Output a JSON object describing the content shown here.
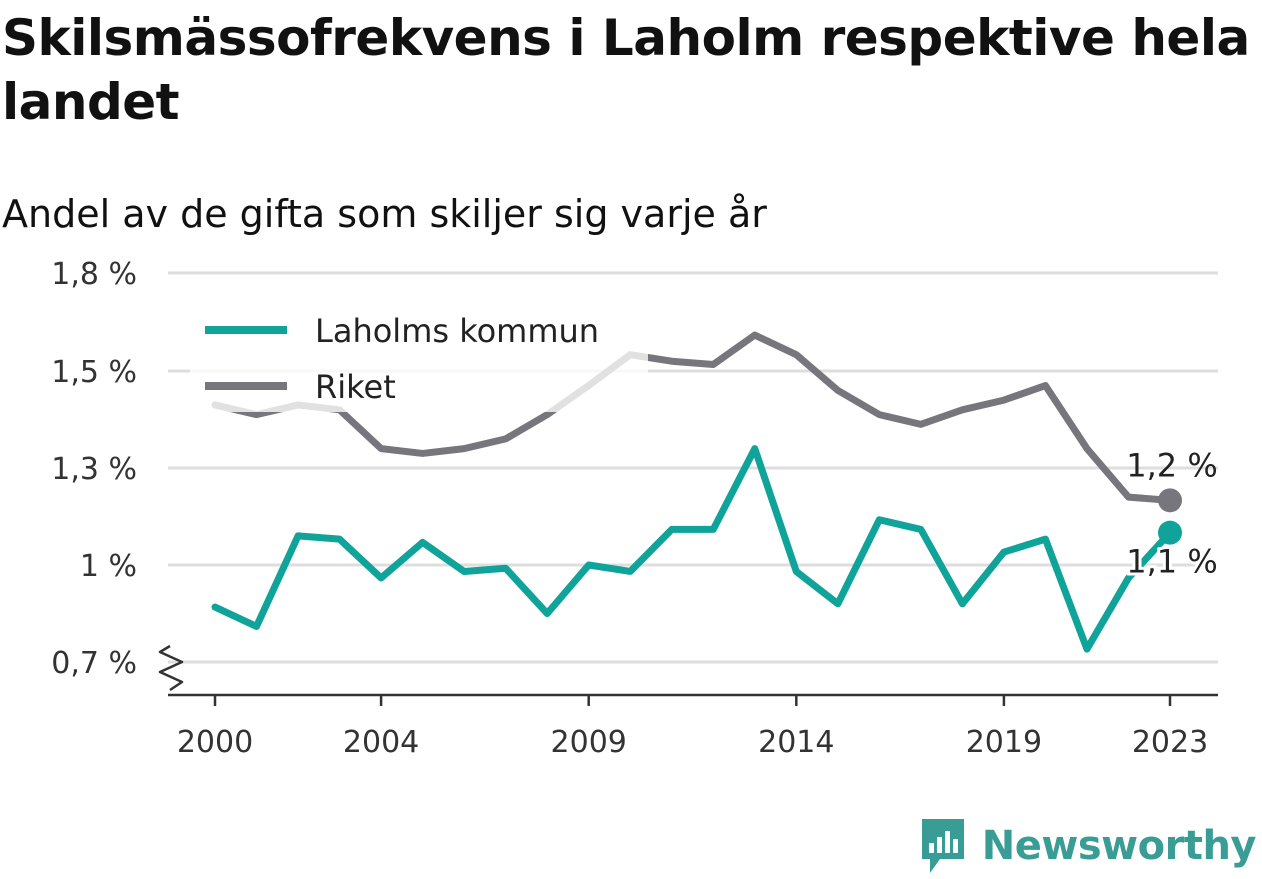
{
  "header": {
    "title": "Skilsmässofrekvens i Laholm respektive hela landet",
    "subtitle": "Andel av de gifta som skiljer sig varje år"
  },
  "brand": {
    "name": "Newsworthy",
    "icon": "newsworthy-logo-icon",
    "color": "#3a9d95"
  },
  "chart_data": {
    "type": "line",
    "title": "Skilsmässofrekvens i Laholm respektive hela landet",
    "subtitle": "Andel av de gifta som skiljer sig varje år",
    "x": [
      2000,
      2001,
      2002,
      2003,
      2004,
      2005,
      2006,
      2007,
      2008,
      2009,
      2010,
      2011,
      2012,
      2013,
      2014,
      2015,
      2016,
      2017,
      2018,
      2019,
      2020,
      2021,
      2022,
      2023
    ],
    "x_ticks": [
      2000,
      2004,
      2009,
      2014,
      2019,
      2023
    ],
    "x_tick_labels": [
      "2000",
      "2004",
      "2009",
      "2014",
      "2019",
      "2023"
    ],
    "y_ticks": [
      0.7,
      1.0,
      1.3,
      1.5,
      1.8
    ],
    "y_tick_labels": [
      "0,7 %",
      "1 %",
      "1,3 %",
      "1,5 %",
      "1,8 %"
    ],
    "y_axis_broken": true,
    "grid": true,
    "legend_position": "top-left",
    "series": [
      {
        "name": "Laholms kommun",
        "color": "#0fa39a",
        "values": [
          0.87,
          0.81,
          1.09,
          1.08,
          0.96,
          1.07,
          0.98,
          0.99,
          0.85,
          1.0,
          0.98,
          1.11,
          1.11,
          1.34,
          0.98,
          0.88,
          1.14,
          1.11,
          0.88,
          1.04,
          1.08,
          0.74,
          0.96,
          1.1
        ],
        "end_label": "1,1 %"
      },
      {
        "name": "Riket",
        "color": "#77767c",
        "values": [
          1.43,
          1.41,
          1.43,
          1.42,
          1.34,
          1.33,
          1.34,
          1.36,
          1.41,
          1.47,
          1.55,
          1.53,
          1.52,
          1.61,
          1.55,
          1.46,
          1.41,
          1.39,
          1.42,
          1.44,
          1.47,
          1.34,
          1.21,
          1.2
        ],
        "end_label": "1,2 %"
      }
    ]
  }
}
